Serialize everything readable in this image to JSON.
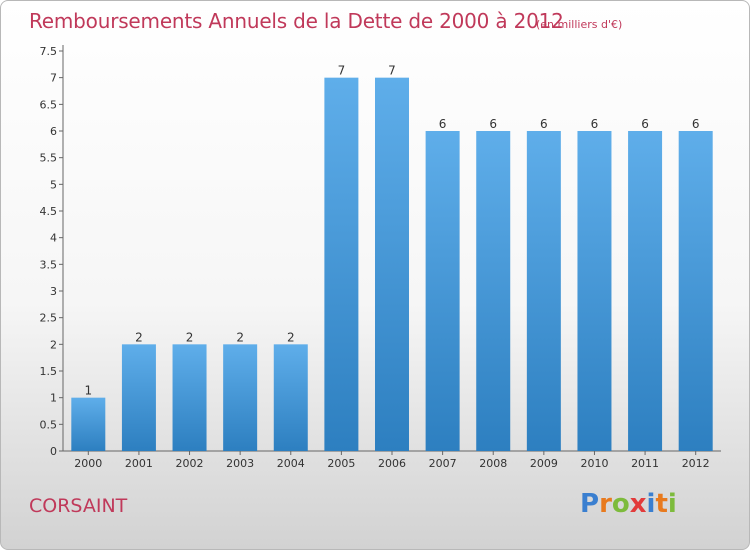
{
  "title": "Remboursements Annuels de la Dette de 2000 à 2012",
  "subtitle": "(en milliers d'€)",
  "commune": "CORSAINT",
  "logo": {
    "letters": [
      "P",
      "r",
      "o",
      "x",
      "i",
      "t",
      "i"
    ],
    "colors": [
      "#3a7fd0",
      "#e87a1e",
      "#7dbb3c",
      "#e23b3b",
      "#3a7fd0",
      "#e87a1e",
      "#7dbb3c"
    ]
  },
  "colors": {
    "bar_light": "#5faeea",
    "bar_dark": "#2d7fc0",
    "accent": "#c0395a"
  },
  "chart_data": {
    "type": "bar",
    "categories": [
      "2000",
      "2001",
      "2002",
      "2003",
      "2004",
      "2005",
      "2006",
      "2007",
      "2008",
      "2009",
      "2010",
      "2011",
      "2012"
    ],
    "values": [
      1,
      2,
      2,
      2,
      2,
      7,
      7,
      6,
      6,
      6,
      6,
      6,
      6
    ],
    "data_labels": [
      "1",
      "2",
      "2",
      "2",
      "2",
      "7",
      "7",
      "6",
      "6",
      "6",
      "6",
      "6",
      "6"
    ],
    "yticks": [
      "0",
      "0.5",
      "1",
      "1.5",
      "2",
      "2.5",
      "3",
      "3.5",
      "4",
      "4.5",
      "5",
      "5.5",
      "6",
      "6.5",
      "7",
      "7.5"
    ],
    "ylim": [
      0,
      7.5
    ],
    "grid": false,
    "title": "Remboursements Annuels de la Dette de 2000 à 2012",
    "xlabel": "",
    "ylabel": ""
  }
}
